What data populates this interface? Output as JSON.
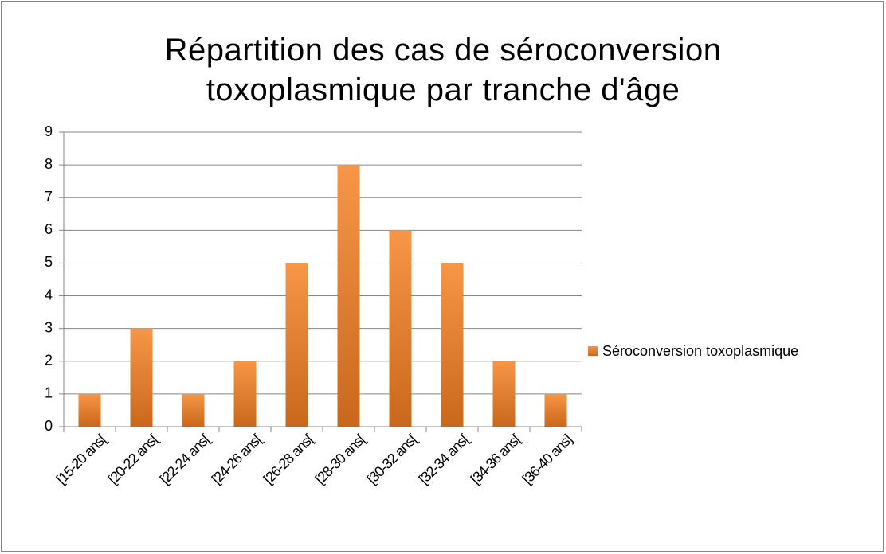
{
  "chart_data": {
    "type": "bar",
    "title": "Répartition des cas de séroconversion toxoplasmique par tranche d'âge",
    "categories": [
      "[15-20 ans[",
      "[20-22 ans[",
      "[22-24 ans[",
      "[24-26 ans[",
      "[26-28 ans[",
      "[28-30 ans[",
      "[30-32 ans[",
      "[32-34 ans[",
      "[34-36 ans[",
      "[36-40 ans]"
    ],
    "series": [
      {
        "name": "Séroconversion toxoplasmique",
        "color": "#f79646",
        "values": [
          1,
          3,
          1,
          2,
          5,
          8,
          6,
          5,
          2,
          1
        ]
      }
    ],
    "ylim": [
      0,
      9
    ],
    "yticks": [
      0,
      1,
      2,
      3,
      4,
      5,
      6,
      7,
      8,
      9
    ],
    "grid": true,
    "legend": "right"
  }
}
